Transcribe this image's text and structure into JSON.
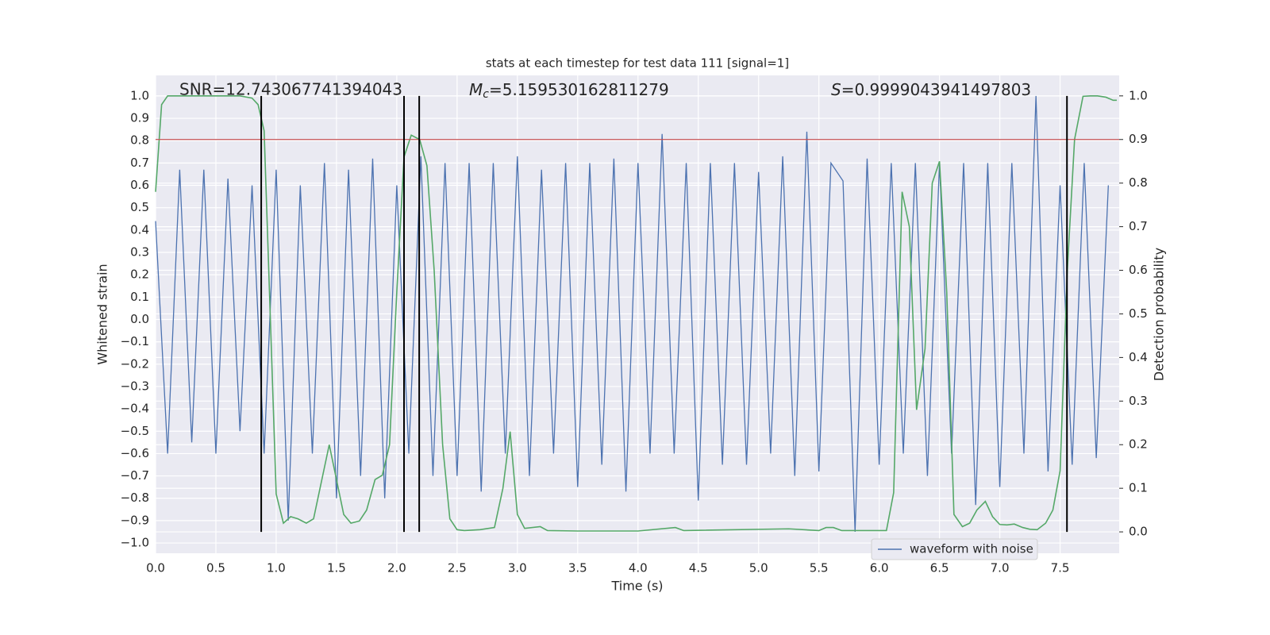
{
  "chart_data": {
    "type": "line",
    "title": "stats at each timestep for test data 111 [signal=1]",
    "x_label": "Time (s)",
    "y_label": "Whitened strain",
    "y2_label": "Detection probability",
    "grid": true,
    "xlim": [
      0,
      7.99
    ],
    "ylim": [
      -1.046,
      1.092
    ],
    "y2lim": [
      -0.049,
      1.047
    ],
    "xticks": [
      {
        "value": 0,
        "label": "0.0"
      },
      0.5,
      {
        "value": 1,
        "label": "1.0"
      },
      1.5,
      {
        "value": 2,
        "label": "2.0"
      },
      2.5,
      {
        "value": 3,
        "label": "3.0"
      },
      3.5,
      {
        "value": 4,
        "label": "4.0"
      },
      4.5,
      {
        "value": 5,
        "label": "5.0"
      },
      5.5,
      {
        "value": 6,
        "label": "6.0"
      },
      6.5,
      {
        "value": 7,
        "label": "7.0"
      },
      7.5
    ],
    "yticks": [
      {
        "value": -1,
        "label": "−1.0"
      },
      {
        "value": -0.9,
        "label": "−0.9"
      },
      {
        "value": -0.8,
        "label": "−0.8"
      },
      {
        "value": -0.7,
        "label": "−0.7"
      },
      {
        "value": -0.6,
        "label": "−0.6"
      },
      {
        "value": -0.5,
        "label": "−0.5"
      },
      {
        "value": -0.4,
        "label": "−0.4"
      },
      {
        "value": -0.3,
        "label": "−0.3"
      },
      {
        "value": -0.2,
        "label": "−0.2"
      },
      {
        "value": -0.1,
        "label": "−0.1"
      },
      {
        "value": 0,
        "label": "0.0"
      },
      0.1,
      0.2,
      0.3,
      0.4,
      0.5,
      0.6,
      0.7,
      0.8,
      0.9,
      {
        "value": 1,
        "label": "1.0"
      }
    ],
    "y2ticks": [
      {
        "value": 0,
        "label": "0.0"
      },
      0.1,
      0.2,
      0.3,
      0.4,
      0.5,
      0.6,
      0.7,
      0.8,
      0.9,
      {
        "value": 1,
        "label": "1.0"
      }
    ],
    "annotations": [
      {
        "text": "SNR=12.743067741394043"
      },
      {
        "symbol": "M",
        "subscript": "c",
        "text": "=5.159530162811279"
      },
      {
        "symbol": "S",
        "text": "=0.9999043941497803"
      }
    ],
    "series": [
      {
        "name": "waveform with noise",
        "color": "#4c72b0",
        "x": [
          0.0,
          0.1,
          0.2,
          0.3,
          0.4,
          0.5,
          0.6,
          0.7,
          0.8,
          0.9,
          1.0,
          1.1,
          1.2,
          1.3,
          1.4,
          1.5,
          1.6,
          1.7,
          1.8,
          1.9,
          2.0,
          2.1,
          2.2,
          2.3,
          2.4,
          2.5,
          2.6,
          2.7,
          2.8,
          2.9,
          3.0,
          3.1,
          3.2,
          3.3,
          3.4,
          3.5,
          3.6,
          3.7,
          3.8,
          3.9,
          4.0,
          4.1,
          4.2,
          4.3,
          4.4,
          4.5,
          4.6,
          4.7,
          4.8,
          4.9,
          5.0,
          5.1,
          5.2,
          5.3,
          5.4,
          5.5,
          5.6,
          5.7,
          5.8,
          5.9,
          6.0,
          6.1,
          6.2,
          6.3,
          6.4,
          6.5,
          6.6,
          6.7,
          6.8,
          6.9,
          7.0,
          7.1,
          7.2,
          7.3,
          7.4,
          7.5,
          7.6,
          7.7,
          7.8,
          7.9
        ],
        "values": [
          0.44,
          -0.6,
          0.67,
          -0.55,
          0.67,
          -0.6,
          0.63,
          -0.5,
          0.6,
          -0.6,
          0.67,
          -0.9,
          0.6,
          -0.6,
          0.7,
          -0.8,
          0.67,
          -0.7,
          0.72,
          -0.8,
          0.6,
          -0.6,
          0.73,
          -0.7,
          0.7,
          -0.7,
          0.7,
          -0.77,
          0.7,
          -0.6,
          0.73,
          -0.7,
          0.67,
          -0.6,
          0.7,
          -0.75,
          0.7,
          -0.65,
          0.72,
          -0.77,
          0.7,
          -0.6,
          0.83,
          -0.6,
          0.7,
          -0.81,
          0.7,
          -0.65,
          0.7,
          -0.65,
          0.66,
          -0.6,
          0.73,
          -0.7,
          0.84,
          -0.68,
          0.7,
          0.62,
          -0.95,
          0.72,
          -0.65,
          0.7,
          -0.6,
          0.7,
          -0.7,
          0.7,
          -0.6,
          0.7,
          -0.83,
          0.7,
          -0.75,
          0.7,
          -0.6,
          1.0,
          -0.68,
          0.6,
          -0.65,
          0.7,
          -0.62,
          0.6
        ]
      },
      {
        "axis": "y2",
        "color": "#55a868",
        "x": [
          0.0,
          0.05,
          0.1,
          0.2,
          0.3,
          0.4,
          0.5,
          0.6,
          0.7,
          0.8,
          0.85,
          0.9,
          1.0,
          1.06,
          1.12,
          1.18,
          1.25,
          1.31,
          1.44,
          1.56,
          1.62,
          1.69,
          1.75,
          1.82,
          1.88,
          1.94,
          2.0,
          2.06,
          2.12,
          2.19,
          2.25,
          2.31,
          2.38,
          2.44,
          2.5,
          2.56,
          2.69,
          2.81,
          2.88,
          2.94,
          3.0,
          3.06,
          3.19,
          3.25,
          3.5,
          4.0,
          4.31,
          4.38,
          5.25,
          5.5,
          5.56,
          5.62,
          5.69,
          6.06,
          6.12,
          6.19,
          6.25,
          6.31,
          6.38,
          6.44,
          6.5,
          6.56,
          6.62,
          6.69,
          6.75,
          6.81,
          6.88,
          6.94,
          7.0,
          7.06,
          7.12,
          7.19,
          7.25,
          7.31,
          7.38,
          7.44,
          7.5,
          7.56,
          7.62,
          7.69,
          7.75,
          7.81,
          7.88,
          7.94,
          7.97
        ],
        "values": [
          0.78,
          0.98,
          1.0,
          1.0,
          1.0,
          1.0,
          1.0,
          1.0,
          1.0,
          0.995,
          0.98,
          0.92,
          0.087,
          0.02,
          0.035,
          0.03,
          0.02,
          0.03,
          0.2,
          0.04,
          0.02,
          0.025,
          0.05,
          0.12,
          0.13,
          0.2,
          0.55,
          0.86,
          0.91,
          0.9,
          0.84,
          0.6,
          0.2,
          0.03,
          0.005,
          0.003,
          0.005,
          0.01,
          0.1,
          0.23,
          0.04,
          0.008,
          0.012,
          0.003,
          0.002,
          0.002,
          0.01,
          0.003,
          0.007,
          0.003,
          0.01,
          0.01,
          0.003,
          0.003,
          0.09,
          0.78,
          0.7,
          0.28,
          0.42,
          0.8,
          0.85,
          0.55,
          0.04,
          0.012,
          0.02,
          0.05,
          0.07,
          0.035,
          0.017,
          0.016,
          0.018,
          0.01,
          0.006,
          0.005,
          0.02,
          0.05,
          0.14,
          0.6,
          0.9,
          0.999,
          1.0,
          1.0,
          0.997,
          0.99,
          0.99
        ]
      }
    ],
    "hlines": [
      {
        "value": 0.9,
        "axis": "y2",
        "color": "#c44e52"
      }
    ],
    "vlines": {
      "x": [
        0.876,
        2.06,
        2.186,
        7.557
      ],
      "ymin": 0,
      "ymax": 1,
      "axis": "y2",
      "color": "#000000"
    }
  }
}
